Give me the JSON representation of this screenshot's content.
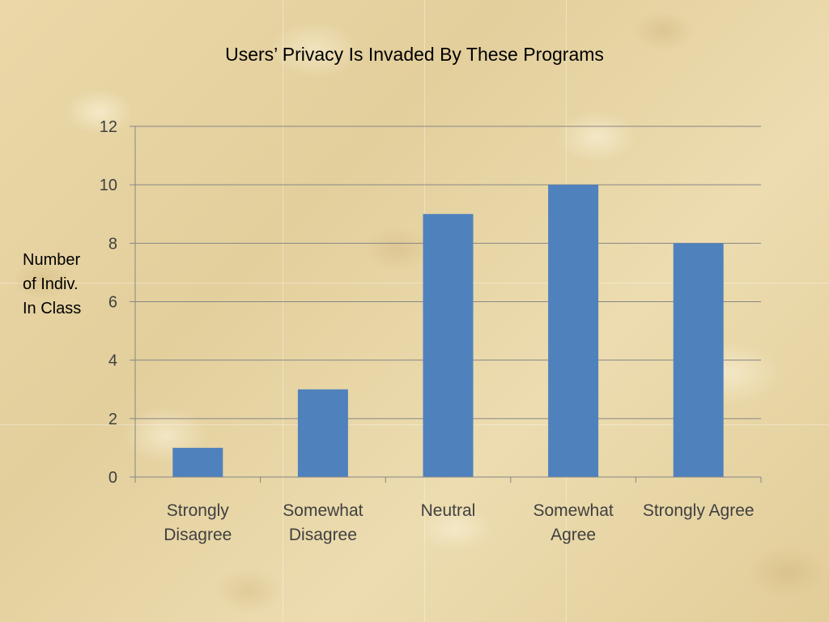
{
  "chart_data": {
    "type": "bar",
    "title": "Users’ Privacy Is Invaded By These Programs",
    "ylabel_lines": [
      "Number",
      "of Indiv.",
      "In Class"
    ],
    "xlabel": "",
    "categories": [
      [
        "Strongly",
        "Disagree"
      ],
      [
        "Somewhat",
        "Disagree"
      ],
      [
        "Neutral"
      ],
      [
        "Somewhat",
        "Agree"
      ],
      [
        "Strongly Agree"
      ]
    ],
    "values": [
      1,
      3,
      9,
      10,
      8
    ],
    "ylim": [
      0,
      12
    ],
    "yticks": [
      0,
      2,
      4,
      6,
      8,
      10,
      12
    ],
    "grid": true,
    "legend": "none",
    "bar_color": "#4f81bd",
    "gridline_color": "#868686",
    "axis_color": "#868686"
  }
}
